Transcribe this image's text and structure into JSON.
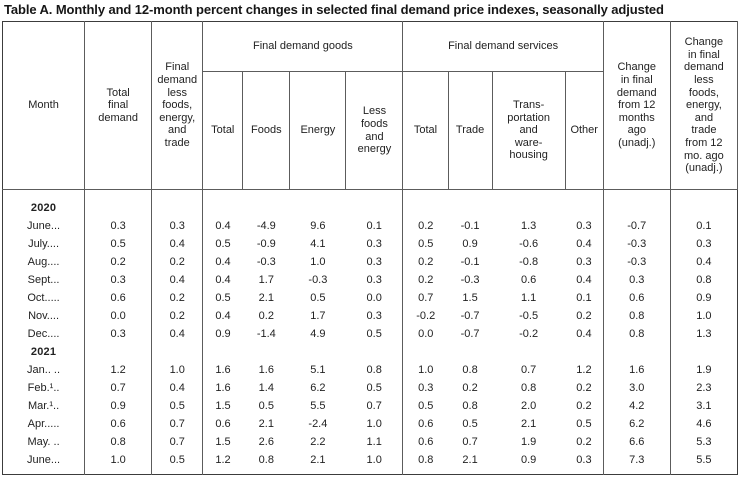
{
  "title": "Table A. Monthly and 12-month percent changes in selected final demand price indexes, seasonally adjusted",
  "colors": {
    "background": "#ffffff",
    "text": "#222222",
    "border_inner": "#5c5c5c",
    "border_outer": "#3c3c3c"
  },
  "table": {
    "header": {
      "month": "Month",
      "total_final_demand": "Total\nfinal\ndemand",
      "fd_less_fet": "Final\ndemand\nless\nfoods,\nenergy,\nand\ntrade",
      "goods_group": "Final demand goods",
      "goods_total": "Total",
      "goods_foods": "Foods",
      "goods_energy": "Energy",
      "goods_less": "Less\nfoods\nand\nenergy",
      "services_group": "Final demand services",
      "services_total": "Total",
      "services_trade": "Trade",
      "services_transport": "Trans-\nportation\nand\nware-\nhousing",
      "services_other": "Other",
      "change_12mo": "Change\nin final\ndemand\nfrom 12\nmonths\nago\n(unadj.)",
      "change_12mo_less": "Change\nin final\ndemand\nless\nfoods,\nenergy,\nand\ntrade\nfrom 12\nmo. ago\n(unadj.)"
    },
    "rows": [
      {
        "type": "year",
        "label": "2020"
      },
      {
        "type": "data",
        "label": "June...",
        "values": [
          "0.3",
          "0.3",
          "0.4",
          "-4.9",
          "9.6",
          "0.1",
          "0.2",
          "-0.1",
          "1.3",
          "0.3",
          "-0.7",
          "0.1"
        ]
      },
      {
        "type": "data",
        "label": "July....",
        "values": [
          "0.5",
          "0.4",
          "0.5",
          "-0.9",
          "4.1",
          "0.3",
          "0.5",
          "0.9",
          "-0.6",
          "0.4",
          "-0.3",
          "0.3"
        ]
      },
      {
        "type": "data",
        "label": "Aug....",
        "values": [
          "0.2",
          "0.2",
          "0.4",
          "-0.3",
          "1.0",
          "0.3",
          "0.2",
          "-0.1",
          "-0.8",
          "0.3",
          "-0.3",
          "0.4"
        ]
      },
      {
        "type": "data",
        "label": "Sept...",
        "values": [
          "0.3",
          "0.4",
          "0.4",
          "1.7",
          "-0.3",
          "0.3",
          "0.2",
          "-0.3",
          "0.6",
          "0.4",
          "0.3",
          "0.8"
        ]
      },
      {
        "type": "data",
        "label": "Oct.....",
        "values": [
          "0.6",
          "0.2",
          "0.5",
          "2.1",
          "0.5",
          "0.0",
          "0.7",
          "1.5",
          "1.1",
          "0.1",
          "0.6",
          "0.9"
        ]
      },
      {
        "type": "data",
        "label": "Nov....",
        "values": [
          "0.0",
          "0.2",
          "0.4",
          "0.2",
          "1.7",
          "0.3",
          "-0.2",
          "-0.7",
          "-0.5",
          "0.2",
          "0.8",
          "1.0"
        ]
      },
      {
        "type": "data",
        "label": "Dec....",
        "values": [
          "0.3",
          "0.4",
          "0.9",
          "-1.4",
          "4.9",
          "0.5",
          "0.0",
          "-0.7",
          "-0.2",
          "0.4",
          "0.8",
          "1.3"
        ]
      },
      {
        "type": "year",
        "label": "2021"
      },
      {
        "type": "data",
        "label": "Jan.. ..",
        "values": [
          "1.2",
          "1.0",
          "1.6",
          "1.6",
          "5.1",
          "0.8",
          "1.0",
          "0.8",
          "0.7",
          "1.2",
          "1.6",
          "1.9"
        ]
      },
      {
        "type": "data",
        "label": "Feb.¹..",
        "values": [
          "0.7",
          "0.4",
          "1.6",
          "1.4",
          "6.2",
          "0.5",
          "0.3",
          "0.2",
          "0.8",
          "0.2",
          "3.0",
          "2.3"
        ]
      },
      {
        "type": "data",
        "label": "Mar.¹..",
        "values": [
          "0.9",
          "0.5",
          "1.5",
          "0.5",
          "5.5",
          "0.7",
          "0.5",
          "0.8",
          "2.0",
          "0.2",
          "4.2",
          "3.1"
        ]
      },
      {
        "type": "data",
        "label": "Apr.....",
        "values": [
          "0.6",
          "0.7",
          "0.6",
          "2.1",
          "-2.4",
          "1.0",
          "0.6",
          "0.5",
          "2.1",
          "0.5",
          "6.2",
          "4.6"
        ]
      },
      {
        "type": "data",
        "label": "May. ..",
        "values": [
          "0.8",
          "0.7",
          "1.5",
          "2.6",
          "2.2",
          "1.1",
          "0.6",
          "0.7",
          "1.9",
          "0.2",
          "6.6",
          "5.3"
        ]
      },
      {
        "type": "data",
        "label": "June...",
        "values": [
          "1.0",
          "0.5",
          "1.2",
          "0.8",
          "2.1",
          "1.0",
          "0.8",
          "2.1",
          "0.9",
          "0.3",
          "7.3",
          "5.5"
        ]
      }
    ]
  }
}
